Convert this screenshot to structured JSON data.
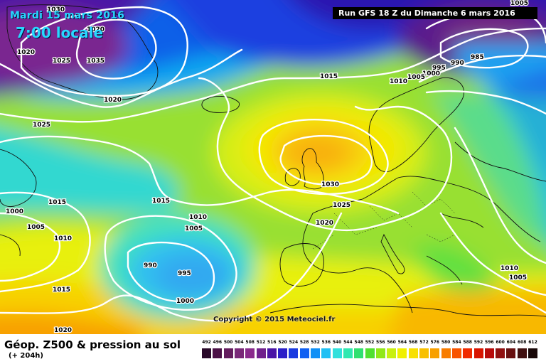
{
  "map": {
    "date_label": "Mardi 15 mars 2016",
    "time_label": "7:00 locale",
    "run_label": "Run GFS 18 Z du Dimanche 6 mars 2016",
    "copyright": "Copyright © 2015 Meteociel.fr",
    "isobar_labels": [
      {
        "id": "iso-1030-nw",
        "text": "1030"
      },
      {
        "id": "iso-1020-top",
        "text": "1020"
      },
      {
        "id": "iso-1020-nw",
        "text": "1020"
      },
      {
        "id": "iso-1025-nw",
        "text": "1025"
      },
      {
        "id": "iso-1035",
        "text": "1035"
      },
      {
        "id": "iso-1020-mid",
        "text": "1020"
      },
      {
        "id": "iso-1025-w",
        "text": "1025"
      },
      {
        "id": "iso-1005-ne",
        "text": "1005"
      },
      {
        "id": "iso-985",
        "text": "985"
      },
      {
        "id": "iso-990-ne",
        "text": "990"
      },
      {
        "id": "iso-995-ne",
        "text": "995"
      },
      {
        "id": "iso-1000-ne",
        "text": "1000"
      },
      {
        "id": "iso-1005-ne2",
        "text": "1005"
      },
      {
        "id": "iso-1010-ne",
        "text": "1010"
      },
      {
        "id": "iso-1015-n",
        "text": "1015"
      },
      {
        "id": "iso-1030-c",
        "text": "1030"
      },
      {
        "id": "iso-1025-c",
        "text": "1025"
      },
      {
        "id": "iso-1020-c",
        "text": "1020"
      },
      {
        "id": "iso-1015-atl",
        "text": "1015"
      },
      {
        "id": "iso-1010-atl",
        "text": "1010"
      },
      {
        "id": "iso-1005-atl",
        "text": "1005"
      },
      {
        "id": "iso-1015-w",
        "text": "1015"
      },
      {
        "id": "iso-1000-w",
        "text": "1000"
      },
      {
        "id": "iso-1005-w",
        "text": "1005"
      },
      {
        "id": "iso-1010-w",
        "text": "1010"
      },
      {
        "id": "iso-990-low",
        "text": "990"
      },
      {
        "id": "iso-995-low",
        "text": "995"
      },
      {
        "id": "iso-1000-low",
        "text": "1000"
      },
      {
        "id": "iso-1015-sw",
        "text": "1015"
      },
      {
        "id": "iso-1020-sw",
        "text": "1020"
      },
      {
        "id": "iso-1010-e",
        "text": "1010"
      },
      {
        "id": "iso-1005-e",
        "text": "1005"
      }
    ]
  },
  "footer": {
    "title": "Géop. Z500 & pression au sol",
    "subtitle": "(+ 204h)"
  },
  "legend": {
    "labels": [
      "492",
      "496",
      "500",
      "504",
      "508",
      "512",
      "516",
      "520",
      "524",
      "528",
      "532",
      "536",
      "540",
      "544",
      "548",
      "552",
      "556",
      "560",
      "564",
      "568",
      "572",
      "576",
      "580",
      "584",
      "588",
      "592",
      "596",
      "600",
      "604",
      "608",
      "612"
    ],
    "colors": [
      "#2a0a2a",
      "#4b1046",
      "#641c5e",
      "#7a2878",
      "#8a2a8c",
      "#70208c",
      "#4a14a6",
      "#2a1ec8",
      "#1a3ae0",
      "#1060f2",
      "#1090f6",
      "#20c0f4",
      "#30e0dc",
      "#30e8b0",
      "#30e070",
      "#50e030",
      "#90e818",
      "#c8f010",
      "#f0f000",
      "#f8e000",
      "#f8c000",
      "#f8a000",
      "#f87c00",
      "#f85400",
      "#f02a00",
      "#d81400",
      "#b80a0a",
      "#901010",
      "#681010",
      "#401010",
      "#180808"
    ]
  }
}
